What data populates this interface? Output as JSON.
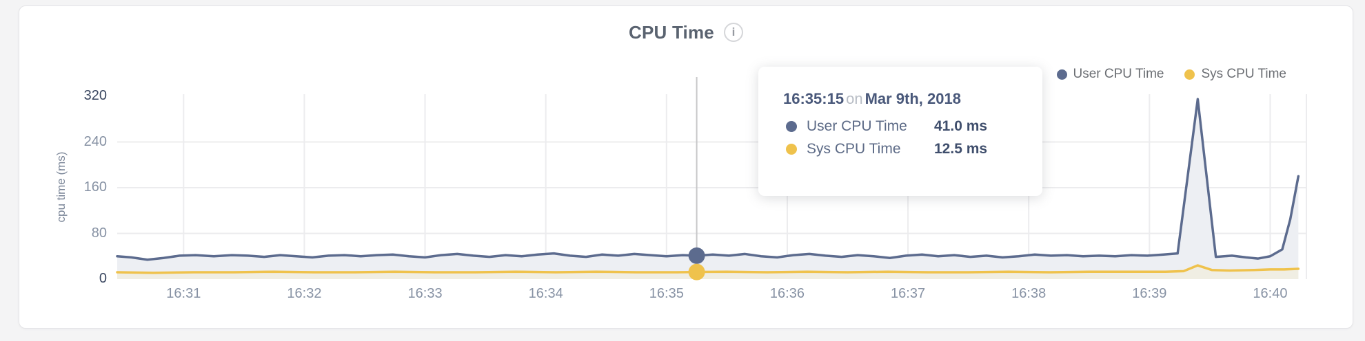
{
  "colors": {
    "page_background": "#f4f4f5",
    "card_background": "#ffffff",
    "user_line": "#5c6b8e",
    "user_fill": "#edeff3",
    "sys_line": "#efc24c",
    "sys_fill": "#f0eee3",
    "gridline": "#ececee",
    "crosshair": "#c7c7c9"
  },
  "header": {
    "title": "CPU Time",
    "info_icon_glyph": "i"
  },
  "legend": [
    {
      "label": "User CPU Time",
      "color": "#5c6b8e"
    },
    {
      "label": "Sys CPU Time",
      "color": "#efc24c"
    }
  ],
  "tooltip": {
    "time": "16:35:15",
    "conjunction": "on",
    "date": "Mar 9th, 2018",
    "rows": [
      {
        "label": "User CPU Time",
        "value": "41.0 ms",
        "color": "#5c6b8e"
      },
      {
        "label": "Sys CPU Time",
        "value": "12.5 ms",
        "color": "#efc24c"
      }
    ]
  },
  "chart_data": {
    "type": "area",
    "title": "CPU Time",
    "xlabel": "",
    "ylabel": "cpu time (ms)",
    "ylim": [
      0,
      320
    ],
    "y_ticks": [
      0,
      80,
      160,
      240,
      320
    ],
    "grid": true,
    "legend_position": "top-right",
    "x_unit": "seconds after 16:30:00 on Mar 9th, 2018",
    "x_domain": [
      27,
      618
    ],
    "x_ticks": [
      {
        "t": 60,
        "label": "16:31"
      },
      {
        "t": 120,
        "label": "16:32"
      },
      {
        "t": 180,
        "label": "16:33"
      },
      {
        "t": 240,
        "label": "16:34"
      },
      {
        "t": 300,
        "label": "16:35"
      },
      {
        "t": 360,
        "label": "16:36"
      },
      {
        "t": 420,
        "label": "16:37"
      },
      {
        "t": 480,
        "label": "16:38"
      },
      {
        "t": 540,
        "label": "16:39"
      },
      {
        "t": 600,
        "label": "16:40"
      }
    ],
    "hover": {
      "t": 315,
      "time_label": "16:35:15",
      "user_value": 41.0,
      "sys_value": 12.5
    },
    "series": [
      {
        "name": "User CPU Time",
        "color": "#5c6b8e",
        "fill": "#edeff3",
        "points": [
          [
            27,
            40
          ],
          [
            34,
            38
          ],
          [
            42,
            34
          ],
          [
            50,
            37
          ],
          [
            58,
            41
          ],
          [
            66,
            42
          ],
          [
            75,
            40
          ],
          [
            84,
            42
          ],
          [
            92,
            41
          ],
          [
            100,
            39
          ],
          [
            108,
            42
          ],
          [
            116,
            40
          ],
          [
            124,
            38
          ],
          [
            132,
            41
          ],
          [
            140,
            42
          ],
          [
            148,
            40
          ],
          [
            156,
            42
          ],
          [
            164,
            43
          ],
          [
            172,
            40
          ],
          [
            180,
            38
          ],
          [
            188,
            42
          ],
          [
            196,
            44
          ],
          [
            204,
            41
          ],
          [
            212,
            39
          ],
          [
            220,
            42
          ],
          [
            228,
            40
          ],
          [
            236,
            43
          ],
          [
            244,
            45
          ],
          [
            252,
            41
          ],
          [
            260,
            39
          ],
          [
            268,
            43
          ],
          [
            276,
            41
          ],
          [
            284,
            44
          ],
          [
            292,
            42
          ],
          [
            300,
            40
          ],
          [
            308,
            42
          ],
          [
            315,
            41
          ],
          [
            323,
            43
          ],
          [
            331,
            41
          ],
          [
            339,
            44
          ],
          [
            347,
            40
          ],
          [
            355,
            38
          ],
          [
            363,
            42
          ],
          [
            371,
            44
          ],
          [
            379,
            41
          ],
          [
            387,
            39
          ],
          [
            395,
            42
          ],
          [
            403,
            40
          ],
          [
            411,
            37
          ],
          [
            419,
            41
          ],
          [
            427,
            43
          ],
          [
            435,
            40
          ],
          [
            443,
            42
          ],
          [
            451,
            39
          ],
          [
            459,
            41
          ],
          [
            467,
            38
          ],
          [
            475,
            40
          ],
          [
            483,
            43
          ],
          [
            491,
            41
          ],
          [
            499,
            42
          ],
          [
            507,
            40
          ],
          [
            515,
            41
          ],
          [
            523,
            40
          ],
          [
            531,
            42
          ],
          [
            539,
            41
          ],
          [
            547,
            43
          ],
          [
            554,
            45
          ],
          [
            564,
            315
          ],
          [
            573,
            39
          ],
          [
            581,
            41
          ],
          [
            588,
            38
          ],
          [
            594,
            36
          ],
          [
            600,
            40
          ],
          [
            606,
            52
          ],
          [
            610,
            105
          ],
          [
            614,
            180
          ]
        ]
      },
      {
        "name": "Sys CPU Time",
        "color": "#efc24c",
        "fill": "#f0eee3",
        "points": [
          [
            27,
            12
          ],
          [
            45,
            11
          ],
          [
            65,
            12
          ],
          [
            85,
            12
          ],
          [
            105,
            13
          ],
          [
            125,
            12
          ],
          [
            145,
            12
          ],
          [
            165,
            13
          ],
          [
            185,
            12
          ],
          [
            205,
            12
          ],
          [
            225,
            13
          ],
          [
            245,
            12
          ],
          [
            265,
            13
          ],
          [
            285,
            12
          ],
          [
            305,
            12
          ],
          [
            315,
            12.5
          ],
          [
            330,
            13
          ],
          [
            350,
            12
          ],
          [
            370,
            13
          ],
          [
            390,
            12
          ],
          [
            410,
            13
          ],
          [
            430,
            12
          ],
          [
            450,
            12
          ],
          [
            470,
            13
          ],
          [
            490,
            12
          ],
          [
            510,
            13
          ],
          [
            530,
            13
          ],
          [
            548,
            13
          ],
          [
            557,
            14
          ],
          [
            564,
            24
          ],
          [
            571,
            16
          ],
          [
            580,
            15
          ],
          [
            592,
            16
          ],
          [
            600,
            17
          ],
          [
            607,
            17
          ],
          [
            614,
            18
          ]
        ]
      }
    ]
  }
}
